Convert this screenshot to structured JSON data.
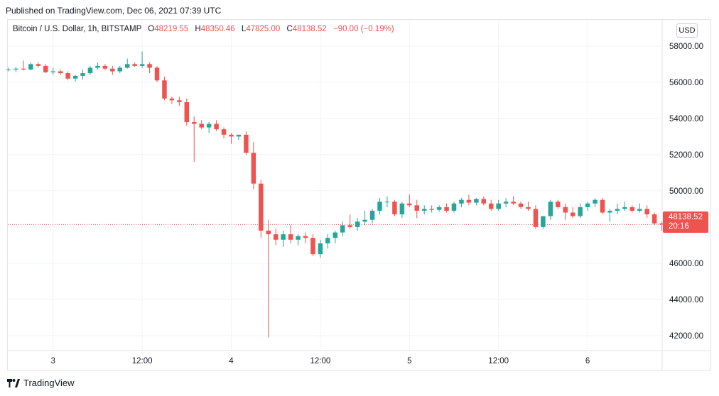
{
  "header": {
    "published": "Published on TradingView.com, Dec 06, 2021 07:39 UTC"
  },
  "legend": {
    "symbol": "Bitcoin / U.S. Dollar, 1h, BITSTAMP",
    "open_label": "O",
    "open": "48219.55",
    "high_label": "H",
    "high": "48350.46",
    "low_label": "L",
    "low": "47825.00",
    "close_label": "C",
    "close": "48138.52",
    "change": "−90.00 (−0.19%)"
  },
  "currency_button": "USD",
  "last_price": {
    "price": "48138.52",
    "countdown": "20:16",
    "value": 48138.52
  },
  "footer": {
    "brand": "TradingView"
  },
  "colors": {
    "up": "#26a69a",
    "down": "#ef5350",
    "grid": "#f0f3fa",
    "text": "#131722"
  },
  "chart_data": {
    "type": "candlestick",
    "title": "",
    "xlabel": "",
    "ylabel": "",
    "ylim": [
      40000,
      59600
    ],
    "y_ticks": [
      42000,
      44000,
      46000,
      48000,
      50000,
      52000,
      54000,
      56000,
      58000
    ],
    "y_tick_labels": [
      "42000.00",
      "44000.00",
      "46000.00",
      "48000.00",
      "50000.00",
      "52000.00",
      "54000.00",
      "56000.00",
      "58000.00"
    ],
    "x_ticks": [
      {
        "label": "3",
        "index": 6
      },
      {
        "label": "12:00",
        "index": 18
      },
      {
        "label": "4",
        "index": 30
      },
      {
        "label": "12:00",
        "index": 42
      },
      {
        "label": "5",
        "index": 54
      },
      {
        "label": "12:00",
        "index": 66
      },
      {
        "label": "6",
        "index": 78
      }
    ],
    "grid": true,
    "candles": [
      [
        56700,
        56800,
        56600,
        56700
      ],
      [
        56700,
        56850,
        56550,
        56750
      ],
      [
        56750,
        57200,
        56650,
        56700
      ],
      [
        56700,
        57100,
        56650,
        57000
      ],
      [
        57000,
        57100,
        56800,
        56900
      ],
      [
        56900,
        57000,
        56500,
        56550
      ],
      [
        56550,
        56800,
        56400,
        56600
      ],
      [
        56600,
        56700,
        56400,
        56500
      ],
      [
        56500,
        56600,
        56100,
        56200
      ],
      [
        56200,
        56400,
        56050,
        56350
      ],
      [
        56350,
        56700,
        56150,
        56500
      ],
      [
        56500,
        56900,
        56400,
        56800
      ],
      [
        56800,
        57100,
        56700,
        56900
      ],
      [
        56900,
        57000,
        56650,
        56750
      ],
      [
        56750,
        56900,
        56400,
        56600
      ],
      [
        56600,
        56900,
        56500,
        56800
      ],
      [
        56800,
        57300,
        56750,
        57000
      ],
      [
        57000,
        57100,
        56850,
        56900
      ],
      [
        56900,
        57700,
        56800,
        57000
      ],
      [
        57000,
        57100,
        56500,
        56800
      ],
      [
        56800,
        56900,
        56000,
        56100
      ],
      [
        56100,
        56300,
        55000,
        55100
      ],
      [
        55100,
        55200,
        54800,
        55000
      ],
      [
        55000,
        55200,
        54700,
        54900
      ],
      [
        54900,
        55100,
        53600,
        53800
      ],
      [
        53800,
        54100,
        51600,
        53700
      ],
      [
        53700,
        53900,
        53400,
        53500
      ],
      [
        53500,
        53800,
        53200,
        53700
      ],
      [
        53700,
        53900,
        53300,
        53400
      ],
      [
        53400,
        53500,
        52900,
        53100
      ],
      [
        53100,
        53200,
        52600,
        53000
      ],
      [
        53000,
        53100,
        52800,
        53100
      ],
      [
        53100,
        53300,
        52000,
        52100
      ],
      [
        52100,
        52700,
        50100,
        50400
      ],
      [
        50400,
        50600,
        47400,
        47800
      ],
      [
        47800,
        48400,
        41900,
        47600
      ],
      [
        47600,
        47900,
        47000,
        47300
      ],
      [
        47300,
        47800,
        46900,
        47600
      ],
      [
        47600,
        48100,
        47100,
        47300
      ],
      [
        47300,
        47600,
        47000,
        47500
      ],
      [
        47500,
        47700,
        47100,
        47400
      ],
      [
        47400,
        47600,
        46400,
        46500
      ],
      [
        46500,
        47300,
        46300,
        47100
      ],
      [
        47100,
        47600,
        46800,
        47400
      ],
      [
        47400,
        47800,
        47100,
        47700
      ],
      [
        47700,
        48300,
        47500,
        48100
      ],
      [
        48100,
        48700,
        47900,
        48000
      ],
      [
        48000,
        48500,
        47800,
        48300
      ],
      [
        48300,
        48900,
        48100,
        48400
      ],
      [
        48400,
        49000,
        48200,
        48900
      ],
      [
        48900,
        49600,
        48700,
        49400
      ],
      [
        49400,
        49700,
        49100,
        49400
      ],
      [
        49400,
        49500,
        48600,
        48700
      ],
      [
        48700,
        49400,
        48500,
        49300
      ],
      [
        49300,
        49800,
        49100,
        49200
      ],
      [
        49200,
        49500,
        48500,
        48900
      ],
      [
        48900,
        49200,
        48700,
        49000
      ],
      [
        49000,
        49200,
        48800,
        48950
      ],
      [
        48950,
        49200,
        48850,
        49100
      ],
      [
        49100,
        49300,
        48800,
        48900
      ],
      [
        48900,
        49400,
        48800,
        49300
      ],
      [
        49300,
        49600,
        49100,
        49500
      ],
      [
        49500,
        49800,
        49200,
        49350
      ],
      [
        49350,
        49600,
        49200,
        49550
      ],
      [
        49550,
        49700,
        49200,
        49300
      ],
      [
        49300,
        49500,
        48900,
        49000
      ],
      [
        49000,
        49500,
        48900,
        49300
      ],
      [
        49300,
        49600,
        49100,
        49400
      ],
      [
        49400,
        49700,
        49200,
        49300
      ],
      [
        49300,
        49400,
        49000,
        49100
      ],
      [
        49100,
        49400,
        48900,
        49000
      ],
      [
        49000,
        49200,
        47900,
        48000
      ],
      [
        48000,
        48600,
        47900,
        48600
      ],
      [
        48600,
        49500,
        48400,
        49400
      ],
      [
        49400,
        49500,
        49000,
        49100
      ],
      [
        49100,
        49300,
        48400,
        48800
      ],
      [
        48800,
        49100,
        48500,
        48600
      ],
      [
        48600,
        49300,
        48500,
        49100
      ],
      [
        49100,
        49400,
        48900,
        49300
      ],
      [
        49300,
        49600,
        49100,
        49500
      ],
      [
        49500,
        49600,
        48700,
        48800
      ],
      [
        48800,
        49000,
        48300,
        48900
      ],
      [
        48900,
        49300,
        48700,
        49000
      ],
      [
        49000,
        49400,
        48900,
        49100
      ],
      [
        49100,
        49200,
        48800,
        48900
      ],
      [
        48900,
        49300,
        48800,
        49000
      ],
      [
        49000,
        49200,
        48500,
        48700
      ],
      [
        48700,
        48800,
        48100,
        48200
      ],
      [
        48200,
        48300,
        47800,
        48138.52
      ]
    ]
  }
}
